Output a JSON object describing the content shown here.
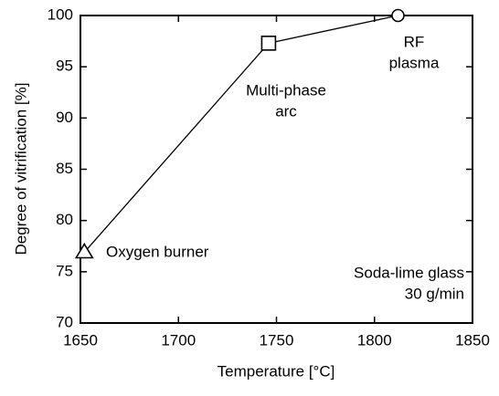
{
  "chart_data": {
    "type": "line",
    "xlabel": "Temperature [°C]",
    "ylabel": "Degree of vitrification [%]",
    "x": [
      1652,
      1746,
      1812
    ],
    "series": [
      {
        "color": "#000000",
        "values": [
          76.9,
          97.3,
          100
        ],
        "markers": [
          "triangle",
          "square",
          "circle"
        ]
      }
    ],
    "xlim": [
      1650,
      1850
    ],
    "xticks": [
      1650,
      1700,
      1750,
      1800,
      1850
    ],
    "ylim": [
      70,
      100
    ],
    "yticks": [
      70,
      75,
      80,
      85,
      90,
      95,
      100
    ],
    "annotations": [
      [
        "Oxygen burner"
      ],
      [
        "Multi-phase",
        "arc"
      ],
      [
        "RF",
        "plasma"
      ],
      [
        "Soda-lime glass",
        "30 g/min"
      ]
    ]
  }
}
